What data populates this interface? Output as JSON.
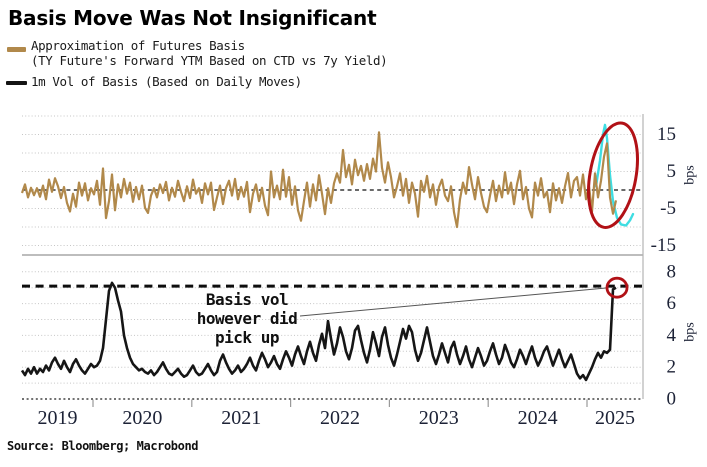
{
  "title": "Basis Move Was Not Insignificant",
  "legend": {
    "items": [
      {
        "label_line1": "Approximation of Futures Basis",
        "label_line2": "(TY Future's Forward YTM Based on CTD vs 7y Yield)",
        "color": "#b1894b"
      },
      {
        "label": "1m Vol of Basis (Based on Daily Moves)",
        "color": "#141414"
      }
    ]
  },
  "annotation": {
    "lines": [
      "Basis vol",
      "however did",
      "pick up"
    ]
  },
  "source": "Source: Bloomberg; Macrobond",
  "colors": {
    "basis_line": "#b1894b",
    "vol_line": "#161616",
    "highlight_cyan": "#3fdde2",
    "highlight_red": "#b11116",
    "grid": "#c6c6c6",
    "axis_text": "#1c2236",
    "axis_line": "#b3b3b3"
  },
  "chart_data": [
    {
      "type": "line",
      "panel": "top",
      "name": "Approximation of Futures Basis (TY Future's Forward YTM Based on CTD vs 7y Yield)",
      "ylabel": "bps",
      "yticks": [
        15,
        5,
        -5,
        -15
      ],
      "gridlines": [
        20,
        15,
        10,
        5,
        -5,
        -10,
        -15
      ],
      "ylim": [
        -17.5,
        21
      ],
      "zero_line": "dashed",
      "legend_position": "top-left",
      "series": [
        {
          "name": "Futures Basis Approximation",
          "color": "#b1894b",
          "x0": 2019.281,
          "dx": 0.030364,
          "values": [
            -0.8,
            1.5,
            -2.0,
            0.6,
            -1.4,
            0.5,
            -1.8,
            1.2,
            -2.5,
            2.8,
            -0.5,
            3.2,
            1.0,
            -2.2,
            0.8,
            -3.5,
            -5.8,
            -1.0,
            -4.5,
            2.0,
            -1.5,
            1.8,
            -2.8,
            0.5,
            -1.2,
            2.5,
            -4.0,
            5.8,
            -7.6,
            -3.0,
            4.2,
            -5.5,
            1.5,
            -2.0,
            3.0,
            -1.0,
            2.0,
            -3.2,
            0.8,
            -2.5,
            1.2,
            -4.8,
            -6.2,
            -1.5,
            0.5,
            -2.0,
            1.5,
            -0.8,
            2.2,
            -2.8,
            0.6,
            -1.8,
            2.5,
            -0.5,
            -3.0,
            1.0,
            -2.2,
            2.8,
            -1.0,
            0.5,
            -3.5,
            1.8,
            -1.2,
            2.0,
            -5.4,
            -2.0,
            1.2,
            -3.8,
            0.5,
            2.5,
            -1.5,
            3.0,
            -2.5,
            0.8,
            -1.8,
            2.2,
            -6.0,
            -1.0,
            1.5,
            -3.0,
            0.6,
            -4.2,
            -6.8,
            5.0,
            -2.0,
            1.2,
            -2.5,
            5.5,
            -1.8,
            3.5,
            -4.0,
            1.0,
            -5.5,
            -8.3,
            -3.0,
            2.0,
            -4.5,
            1.5,
            -2.8,
            4.0,
            -1.0,
            -6.5,
            0.5,
            -3.5,
            1.8,
            4.5,
            2.0,
            10.8,
            3.5,
            6.8,
            1.5,
            8.2,
            4.0,
            6.5,
            2.5,
            7.0,
            3.0,
            8.5,
            5.0,
            15.6,
            6.0,
            2.0,
            7.5,
            3.5,
            -2.0,
            1.0,
            4.5,
            -1.5,
            3.0,
            -3.5,
            2.0,
            -1.0,
            -7.2,
            2.5,
            -0.5,
            3.8,
            -2.0,
            1.5,
            -4.0,
            0.8,
            2.8,
            -1.5,
            -3.0,
            1.0,
            -6.0,
            -10.0,
            -2.5,
            2.0,
            -1.0,
            6.2,
            1.5,
            -2.5,
            3.5,
            -0.8,
            -4.5,
            -6.0,
            -1.5,
            2.5,
            -3.0,
            1.2,
            -2.0,
            4.8,
            -1.0,
            2.0,
            -3.8,
            1.5,
            5.2,
            -2.5,
            0.8,
            -5.0,
            -7.4,
            2.0,
            -1.5,
            3.2,
            -2.0,
            -0.5,
            -6.0,
            1.8,
            -2.8,
            0.5,
            -3.5,
            1.0,
            4.6,
            -2.0,
            2.5,
            3.5,
            -1.5,
            4.2,
            -2.5,
            1.0,
            -5.8,
            4.5,
            -2.0,
            2.5,
            9.0,
            12.6,
            -2.0,
            -6.4,
            -2.8
          ]
        },
        {
          "name": "highlight trace",
          "color": "#3fdde2",
          "points": [
            [
              2025.091,
              1.0
            ],
            [
              2025.132,
              8.0
            ],
            [
              2025.162,
              15.0
            ],
            [
              2025.182,
              17.6
            ],
            [
              2025.202,
              14.0
            ],
            [
              2025.233,
              4.0
            ],
            [
              2025.263,
              -3.0
            ],
            [
              2025.304,
              -7.5
            ],
            [
              2025.344,
              -9.3
            ],
            [
              2025.395,
              -9.6
            ],
            [
              2025.435,
              -8.2
            ],
            [
              2025.466,
              -6.5
            ]
          ]
        }
      ],
      "annotations": [
        {
          "type": "ellipse-highlight",
          "color": "#b11116",
          "x": 2025.263,
          "y": 4.0,
          "rx_years": 0.233,
          "ry_bps": 14.3,
          "rotate_deg": 10
        }
      ]
    },
    {
      "type": "line",
      "panel": "bottom",
      "name": "1m Vol of Basis (Based on Daily Moves)",
      "ylabel": "bps",
      "yticks": [
        8,
        6,
        4,
        2,
        0
      ],
      "gridlines": [
        8,
        7,
        6,
        5,
        4,
        3,
        2,
        1
      ],
      "ylim": [
        0,
        8.9
      ],
      "threshold_line": {
        "value": 7.1,
        "style": "bold-dashed",
        "color": "#0d0d0d"
      },
      "series": [
        {
          "name": "1m Vol of Basis",
          "color": "#161616",
          "x0": 2019.281,
          "dx": 0.030364,
          "values": [
            1.8,
            1.5,
            1.9,
            1.6,
            2.0,
            1.6,
            1.9,
            1.7,
            2.1,
            1.8,
            2.3,
            2.6,
            2.2,
            1.9,
            2.4,
            2.0,
            1.7,
            2.2,
            2.5,
            2.1,
            1.8,
            1.6,
            1.9,
            2.2,
            2.0,
            2.1,
            2.4,
            3.2,
            5.0,
            6.8,
            7.3,
            7.0,
            6.2,
            5.5,
            4.0,
            3.2,
            2.6,
            2.2,
            2.0,
            1.8,
            1.9,
            1.7,
            1.6,
            1.8,
            1.5,
            1.7,
            2.0,
            2.3,
            1.9,
            1.6,
            1.5,
            1.7,
            1.9,
            1.6,
            1.4,
            1.5,
            1.8,
            2.1,
            1.7,
            1.5,
            1.6,
            1.9,
            2.2,
            1.8,
            1.5,
            1.7,
            2.4,
            2.8,
            2.3,
            1.9,
            1.6,
            1.8,
            2.1,
            1.7,
            1.9,
            2.2,
            2.6,
            2.1,
            1.8,
            2.4,
            2.9,
            2.5,
            2.0,
            2.3,
            2.7,
            2.2,
            1.9,
            2.5,
            3.0,
            2.6,
            2.1,
            2.8,
            3.3,
            2.7,
            2.2,
            3.0,
            3.6,
            2.9,
            2.4,
            3.4,
            4.1,
            3.2,
            4.9,
            3.8,
            2.8,
            3.5,
            4.5,
            3.9,
            3.0,
            2.5,
            3.2,
            4.3,
            4.6,
            3.7,
            2.9,
            2.3,
            3.1,
            4.2,
            3.5,
            2.7,
            3.9,
            4.5,
            3.4,
            2.6,
            2.1,
            2.8,
            3.6,
            4.4,
            3.8,
            4.6,
            4.2,
            3.1,
            2.4,
            2.9,
            3.7,
            4.5,
            3.6,
            2.7,
            2.2,
            2.8,
            3.5,
            2.9,
            2.3,
            3.2,
            3.6,
            2.8,
            2.2,
            2.7,
            3.3,
            2.5,
            2.0,
            2.6,
            3.2,
            2.7,
            2.1,
            2.4,
            3.0,
            3.5,
            2.8,
            2.2,
            2.6,
            3.4,
            2.9,
            2.3,
            2.0,
            2.5,
            3.1,
            2.7,
            2.2,
            2.8,
            3.3,
            2.6,
            2.1,
            2.5,
            3.0,
            3.3,
            2.7,
            2.1,
            2.6,
            3.1,
            2.5,
            2.0,
            2.4,
            2.8,
            2.2,
            1.6,
            1.3,
            1.5,
            1.2,
            1.6,
            2.0,
            2.5,
            2.9,
            2.6,
            3.0,
            2.9,
            3.1,
            6.9,
            7.0
          ]
        }
      ],
      "annotations": [
        {
          "type": "circle-highlight",
          "color": "#b11116",
          "x": 2025.304,
          "y": 7.0,
          "rx_years": 0.101,
          "ry_bps": 0.6
        },
        {
          "type": "leader-line",
          "from": [
            2022.095,
            5.22
          ],
          "to": [
            2025.192,
            6.98
          ]
        },
        {
          "type": "text",
          "lines": [
            "Basis vol",
            "however did",
            "pick up"
          ]
        }
      ]
    }
  ],
  "xaxis": {
    "year_labels": [
      "2019",
      "2020",
      "2021",
      "2022",
      "2023",
      "2024",
      "2025"
    ],
    "tick_years": [
      2020,
      2021,
      2022,
      2023,
      2024,
      2025
    ]
  }
}
